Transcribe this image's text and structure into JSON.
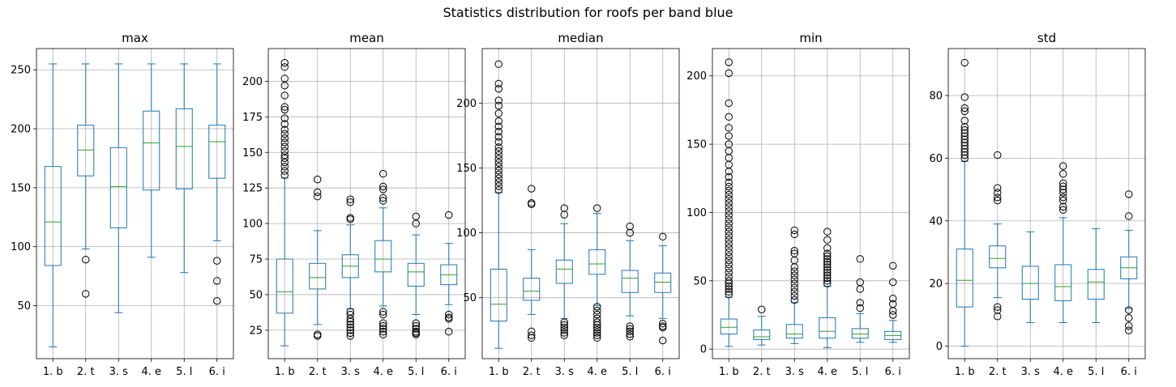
{
  "suptitle": "Statistics distribution for roofs per band blue",
  "chart_data": [
    {
      "type": "box",
      "title": "max",
      "categories": [
        "1. b",
        "2. t",
        "3. s",
        "4. e",
        "5. l",
        "6. i"
      ],
      "ylim": [
        5,
        268
      ],
      "yticks": [
        50,
        100,
        150,
        200,
        250
      ],
      "grid": true,
      "boxes": [
        {
          "whislo": 15,
          "q1": 84,
          "med": 121,
          "q3": 168,
          "whishi": 255,
          "fliers": []
        },
        {
          "whislo": 98,
          "q1": 160,
          "med": 182,
          "q3": 203,
          "whishi": 255,
          "fliers": [
            89,
            60
          ]
        },
        {
          "whislo": 44,
          "q1": 116,
          "med": 151,
          "q3": 184,
          "whishi": 255,
          "fliers": []
        },
        {
          "whislo": 91,
          "q1": 148,
          "med": 188,
          "q3": 215,
          "whishi": 255,
          "fliers": []
        },
        {
          "whislo": 78,
          "q1": 149,
          "med": 185,
          "q3": 217,
          "whishi": 255,
          "fliers": []
        },
        {
          "whislo": 105,
          "q1": 158,
          "med": 189,
          "q3": 203,
          "whishi": 255,
          "fliers": [
            88,
            71,
            54
          ]
        }
      ]
    },
    {
      "type": "box",
      "title": "mean",
      "categories": [
        "1. b",
        "2. t",
        "3. s",
        "4. e",
        "5. l",
        "6. i"
      ],
      "ylim": [
        5,
        223
      ],
      "yticks": [
        25,
        50,
        75,
        100,
        125,
        150,
        175,
        200
      ],
      "grid": true,
      "boxes": [
        {
          "whislo": 14,
          "q1": 37,
          "med": 52,
          "q3": 75,
          "whishi": 132,
          "fliers": [
            134,
            137,
            140,
            143,
            146,
            148,
            151,
            154,
            157,
            160,
            163,
            166,
            170,
            174,
            180,
            182,
            190,
            197,
            202,
            210,
            213
          ]
        },
        {
          "whislo": 29,
          "q1": 54,
          "med": 62,
          "q3": 72,
          "whishi": 95,
          "fliers": [
            131,
            122,
            119,
            21,
            22
          ]
        },
        {
          "whislo": 40,
          "q1": 62,
          "med": 70,
          "q3": 78,
          "whishi": 99,
          "fliers": [
            117,
            115,
            104,
            103,
            38,
            36,
            33,
            31,
            29,
            27,
            25,
            23,
            21
          ]
        },
        {
          "whislo": 42,
          "q1": 66,
          "med": 75,
          "q3": 88,
          "whishi": 111,
          "fliers": [
            135,
            126,
            124,
            118,
            116,
            38,
            36,
            30,
            28,
            26,
            24,
            22
          ]
        },
        {
          "whislo": 36,
          "q1": 56,
          "med": 66,
          "q3": 72,
          "whishi": 92,
          "fliers": [
            105,
            100,
            30,
            28,
            26,
            24,
            23,
            22
          ]
        },
        {
          "whislo": 43,
          "q1": 57,
          "med": 64,
          "q3": 71,
          "whishi": 86,
          "fliers": [
            106,
            36,
            34,
            33,
            24
          ]
        }
      ]
    },
    {
      "type": "box",
      "title": "median",
      "categories": [
        "1. b",
        "2. t",
        "3. s",
        "4. e",
        "5. l",
        "6. i"
      ],
      "ylim": [
        3,
        242
      ],
      "yticks": [
        50,
        100,
        150,
        200
      ],
      "grid": true,
      "boxes": [
        {
          "whislo": 11,
          "q1": 32,
          "med": 45,
          "q3": 72,
          "whishi": 131,
          "fliers": [
            133,
            136,
            139,
            142,
            145,
            148,
            151,
            154,
            157,
            160,
            163,
            166,
            170,
            174,
            178,
            182,
            186,
            192,
            198,
            202,
            211,
            215,
            230
          ]
        },
        {
          "whislo": 37,
          "q1": 48,
          "med": 55,
          "q3": 65,
          "whishi": 87,
          "fliers": [
            134,
            123,
            122,
            24,
            21,
            19
          ]
        },
        {
          "whislo": 34,
          "q1": 61,
          "med": 72,
          "q3": 79,
          "whishi": 107,
          "fliers": [
            119,
            114,
            31,
            29,
            27,
            25,
            23,
            21
          ]
        },
        {
          "whislo": 44,
          "q1": 68,
          "med": 76,
          "q3": 87,
          "whishi": 115,
          "fliers": [
            119,
            43,
            40,
            37,
            34,
            31,
            29,
            27,
            25,
            23,
            21,
            19
          ]
        },
        {
          "whislo": 36,
          "q1": 54,
          "med": 65,
          "q3": 71,
          "whishi": 94,
          "fliers": [
            105,
            100,
            28,
            26,
            24,
            22,
            20
          ]
        },
        {
          "whislo": 34,
          "q1": 54,
          "med": 62,
          "q3": 69,
          "whishi": 90,
          "fliers": [
            97,
            30,
            28,
            27,
            17
          ]
        }
      ]
    },
    {
      "type": "box",
      "title": "min",
      "categories": [
        "1. b",
        "2. t",
        "3. s",
        "4. e",
        "5. l",
        "6. i"
      ],
      "ylim": [
        -7,
        220
      ],
      "yticks": [
        0,
        50,
        100,
        150,
        200
      ],
      "grid": true,
      "boxes": [
        {
          "whislo": 2,
          "q1": 11,
          "med": 16,
          "q3": 22,
          "whishi": 38,
          "fliers": [
            40,
            42,
            44,
            46,
            48,
            50,
            53,
            56,
            59,
            62,
            65,
            68,
            71,
            74,
            77,
            80,
            83,
            86,
            89,
            92,
            95,
            98,
            101,
            104,
            107,
            110,
            113,
            116,
            119,
            122,
            126,
            130,
            135,
            140,
            145,
            150,
            156,
            162,
            170,
            180,
            202,
            210
          ]
        },
        {
          "whislo": 3,
          "q1": 7,
          "med": 9,
          "q3": 14,
          "whishi": 24,
          "fliers": [
            29
          ]
        },
        {
          "whislo": 4,
          "q1": 8,
          "med": 11,
          "q3": 18,
          "whishi": 34,
          "fliers": [
            87,
            84,
            72,
            70,
            65,
            60,
            57,
            54,
            51,
            48,
            45,
            42,
            39,
            36
          ]
        },
        {
          "whislo": 1,
          "q1": 8,
          "med": 13,
          "q3": 23,
          "whishi": 46,
          "fliers": [
            86,
            80,
            74,
            70,
            68,
            66,
            64,
            62,
            60,
            58,
            56,
            54,
            52,
            50,
            48
          ]
        },
        {
          "whislo": 5,
          "q1": 8,
          "med": 11,
          "q3": 15,
          "whishi": 26,
          "fliers": [
            66,
            49,
            44,
            34,
            30
          ]
        },
        {
          "whislo": 5,
          "q1": 7,
          "med": 10,
          "q3": 13,
          "whishi": 21,
          "fliers": [
            61,
            49,
            37,
            33,
            28,
            25
          ]
        }
      ]
    },
    {
      "type": "box",
      "title": "std",
      "categories": [
        "1. b",
        "2. t",
        "3. s",
        "4. e",
        "5. l",
        "6. i"
      ],
      "ylim": [
        -4,
        95
      ],
      "yticks": [
        0,
        20,
        40,
        60,
        80
      ],
      "grid": true,
      "boxes": [
        {
          "whislo": 0,
          "q1": 12.5,
          "med": 21,
          "q3": 31,
          "whishi": 59,
          "fliers": [
            60,
            61,
            62,
            63,
            64,
            65,
            66,
            67,
            68,
            69,
            70,
            72,
            75,
            76,
            79.5,
            90.5
          ]
        },
        {
          "whislo": 15.5,
          "q1": 25,
          "med": 28,
          "q3": 32,
          "whishi": 39,
          "fliers": [
            61,
            50.5,
            49,
            47.5,
            46.5,
            12.5,
            11.5,
            9.5
          ]
        },
        {
          "whislo": 7.5,
          "q1": 15,
          "med": 20,
          "q3": 25.5,
          "whishi": 36.5,
          "fliers": []
        },
        {
          "whislo": 7.5,
          "q1": 14.5,
          "med": 19,
          "q3": 26,
          "whishi": 41,
          "fliers": [
            57.5,
            55,
            52,
            51,
            50,
            49,
            47.5,
            46.5,
            44.5,
            43.5
          ]
        },
        {
          "whislo": 7.5,
          "q1": 15,
          "med": 20.5,
          "q3": 24.5,
          "whishi": 37.5,
          "fliers": []
        },
        {
          "whislo": 12,
          "q1": 21.5,
          "med": 25,
          "q3": 28.5,
          "whishi": 37,
          "fliers": [
            48.5,
            41.5,
            11.5,
            9,
            6.5,
            5
          ]
        }
      ]
    }
  ]
}
